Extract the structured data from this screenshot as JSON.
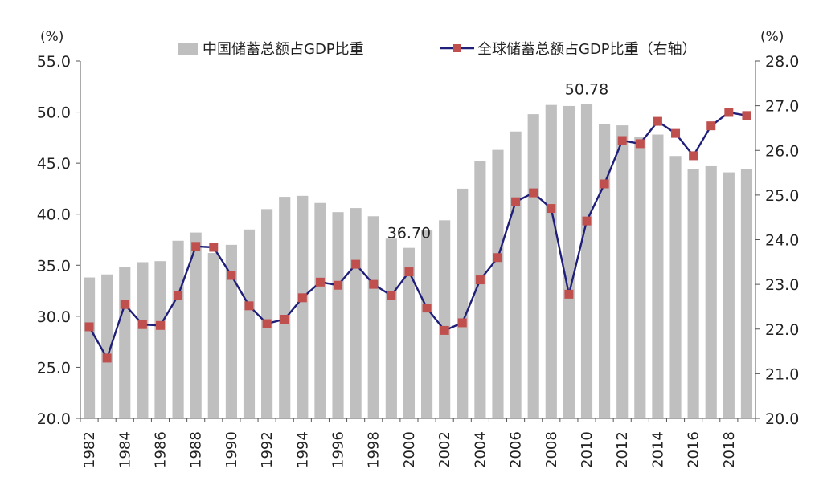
{
  "chart_data": {
    "type": "bar",
    "title": "",
    "x": [
      1982,
      1983,
      1984,
      1985,
      1986,
      1987,
      1988,
      1989,
      1990,
      1991,
      1992,
      1993,
      1994,
      1995,
      1996,
      1997,
      1998,
      1999,
      2000,
      2001,
      2002,
      2003,
      2004,
      2005,
      2006,
      2007,
      2008,
      2009,
      2010,
      2011,
      2012,
      2013,
      2014,
      2015,
      2016,
      2017,
      2018,
      2019
    ],
    "x_tick_labels": [
      "1982",
      "1984",
      "1986",
      "1988",
      "1990",
      "1992",
      "1994",
      "1996",
      "1998",
      "2000",
      "2002",
      "2004",
      "2006",
      "2008",
      "2010",
      "2012",
      "2014",
      "2016",
      "2018"
    ],
    "left_axis": {
      "unit": "(%)",
      "ylim": [
        20.0,
        55.0
      ],
      "ticks": [
        "20.0",
        "25.0",
        "30.0",
        "35.0",
        "40.0",
        "45.0",
        "50.0",
        "55.0"
      ]
    },
    "right_axis": {
      "unit": "(%)",
      "ylim": [
        20.0,
        28.0
      ],
      "ticks": [
        "20.0",
        "21.0",
        "22.0",
        "23.0",
        "24.0",
        "25.0",
        "26.0",
        "27.0",
        "28.0"
      ]
    },
    "grid": false,
    "legend_position": "top",
    "series": [
      {
        "name": "中国储蓄总额占GDP比重",
        "kind": "bar",
        "axis": "left",
        "color": "#bfbfbf",
        "values": [
          33.8,
          34.1,
          34.8,
          35.3,
          35.4,
          37.4,
          38.2,
          36.2,
          37.0,
          38.5,
          40.5,
          41.7,
          41.8,
          41.1,
          40.2,
          40.6,
          39.8,
          37.6,
          36.7,
          38.4,
          39.4,
          42.5,
          45.2,
          46.3,
          48.1,
          49.8,
          50.7,
          50.6,
          50.78,
          48.8,
          48.7,
          47.6,
          47.8,
          45.7,
          44.4,
          44.7,
          44.1,
          44.4
        ]
      },
      {
        "name": "全球储蓄总额占GDP比重（右轴）",
        "kind": "line",
        "axis": "right",
        "color": "#1f1f7a",
        "marker_color": "#c0504d",
        "values": [
          22.05,
          21.35,
          22.55,
          22.1,
          22.08,
          22.75,
          23.85,
          23.83,
          23.2,
          22.52,
          22.12,
          22.22,
          22.7,
          23.05,
          22.98,
          23.45,
          23.0,
          22.75,
          23.28,
          22.47,
          21.97,
          22.14,
          23.1,
          23.6,
          24.85,
          25.05,
          24.7,
          22.78,
          24.42,
          25.25,
          26.22,
          26.15,
          26.65,
          26.38,
          25.88,
          26.55,
          26.85,
          26.78
        ]
      }
    ],
    "annotations": [
      {
        "text": "36.70",
        "x": 2000,
        "value": 36.7
      },
      {
        "text": "50.78",
        "x": 2010,
        "value": 50.78
      }
    ]
  }
}
